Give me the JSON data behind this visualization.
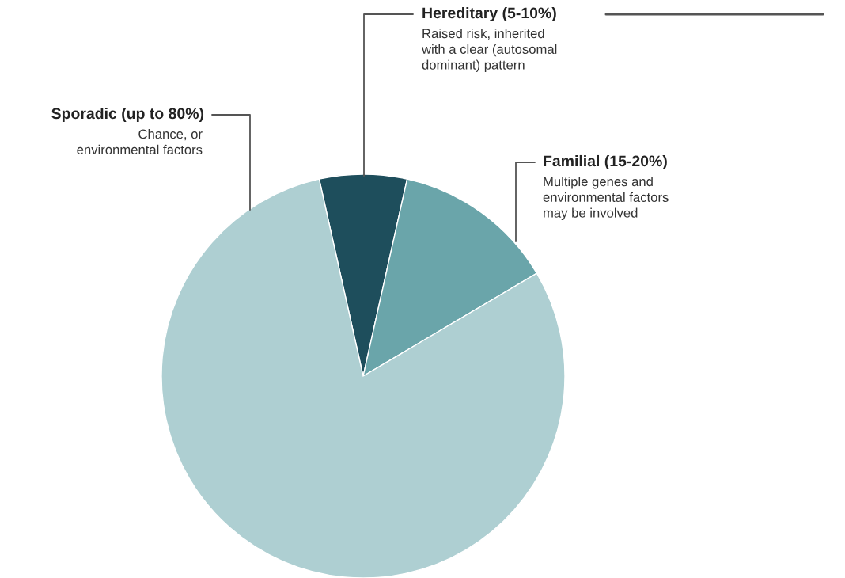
{
  "chart_data": {
    "type": "pie",
    "categories": [
      "Hereditary (5-10%)",
      "Familial (15-20%)",
      "Sporadic (up to 80%)"
    ],
    "values": [
      7,
      13,
      80
    ],
    "colors": [
      "#1e4e5c",
      "#6aa5aa",
      "#aecfd2"
    ],
    "annotations": [
      "Raised risk, inherited\nwith a clear (autosomal\ndominant) pattern",
      "Multiple genes and\nenvironmental factors\nmay be involved",
      "Chance, or\nenvironmental factors"
    ],
    "legend": false
  }
}
